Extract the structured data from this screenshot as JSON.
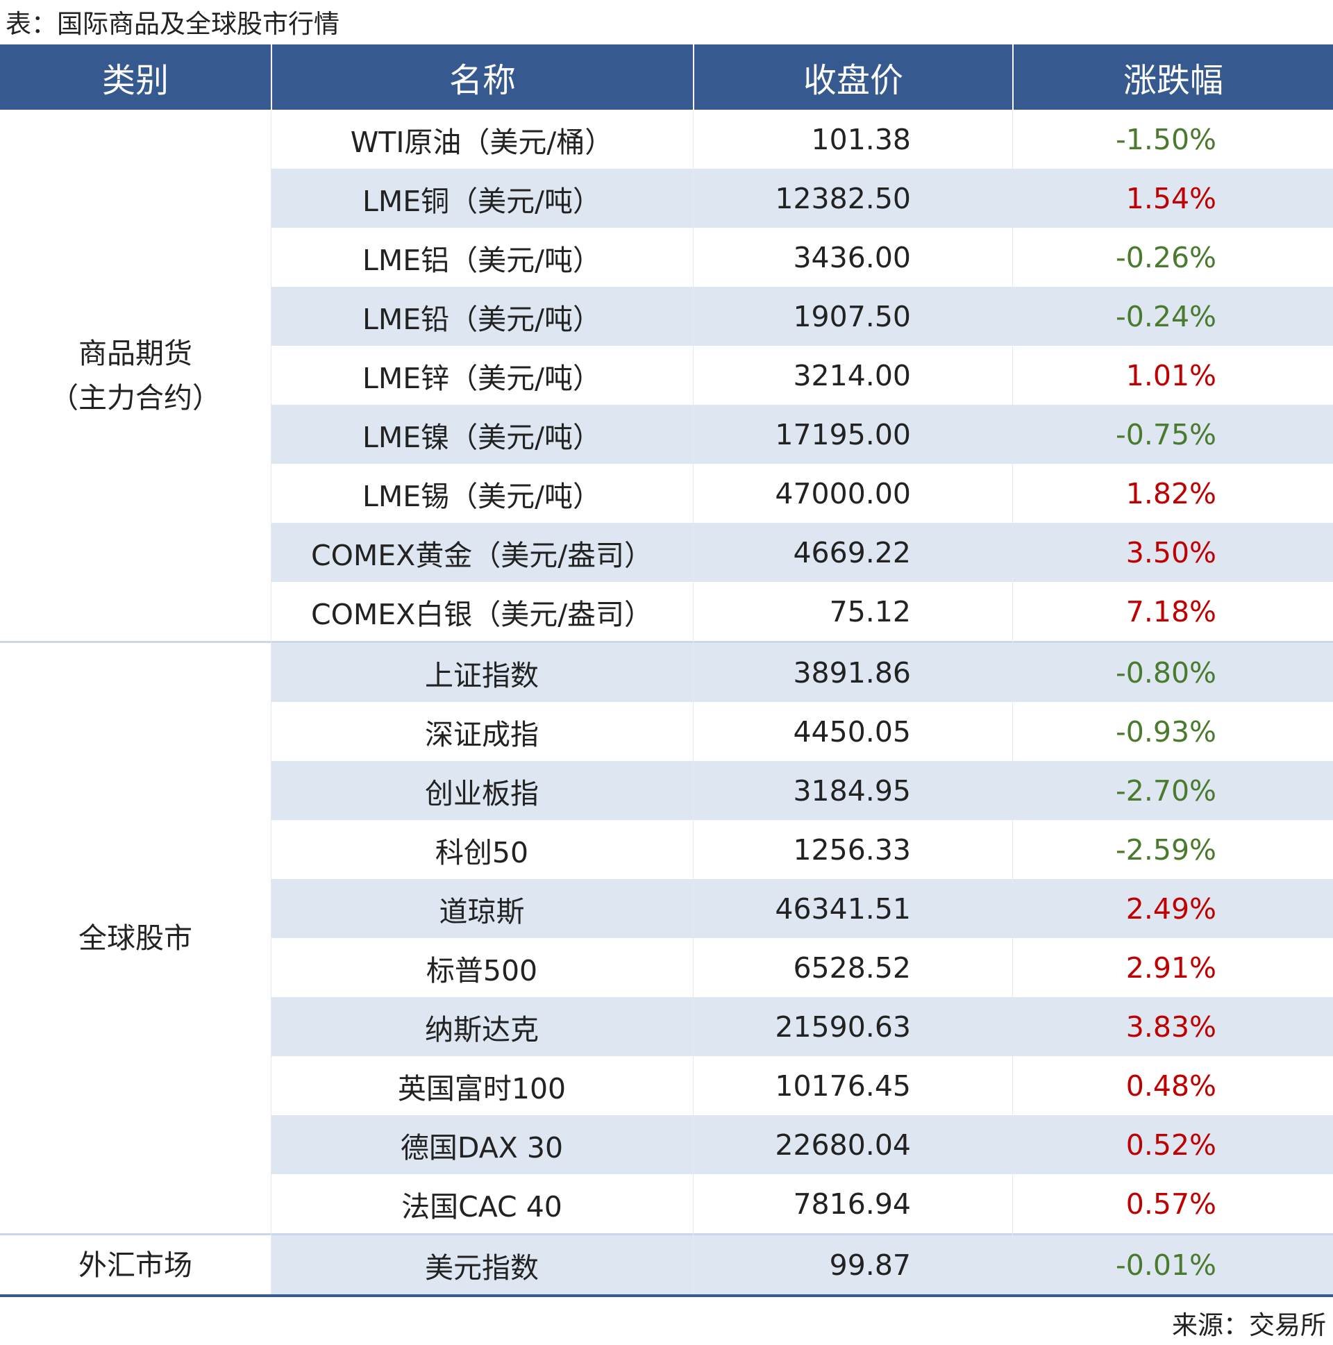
{
  "header": {
    "title": "表：国际商品及全球股市行情"
  },
  "table": {
    "columns": [
      "类别",
      "名称",
      "收盘价",
      "涨跌幅"
    ],
    "groups": [
      {
        "category": [
          "商品期货",
          "（主力合约）"
        ],
        "rows": [
          [
            "WTI原油（美元/桶）",
            "101.38",
            "-1.50%"
          ],
          [
            "LME铜（美元/吨）",
            "12382.50",
            "1.54%"
          ],
          [
            "LME铝（美元/吨）",
            "3436.00",
            "-0.26%"
          ],
          [
            "LME铅（美元/吨）",
            "1907.50",
            "-0.24%"
          ],
          [
            "LME锌（美元/吨）",
            "3214.00",
            "1.01%"
          ],
          [
            "LME镍（美元/吨）",
            "17195.00",
            "-0.75%"
          ],
          [
            "LME锡（美元/吨）",
            "47000.00",
            "1.82%"
          ],
          [
            "COMEX黄金（美元/盎司）",
            "4669.22",
            "3.50%"
          ],
          [
            "COMEX白银（美元/盎司）",
            "75.12",
            "7.18%"
          ]
        ]
      },
      {
        "category": [
          "全球股市"
        ],
        "rows": [
          [
            "上证指数",
            "3891.86",
            "-0.80%"
          ],
          [
            "深证成指",
            "4450.05",
            "-0.93%"
          ],
          [
            "创业板指",
            "3184.95",
            "-2.70%"
          ],
          [
            "科创50",
            "1256.33",
            "-2.59%"
          ],
          [
            "道琼斯",
            "46341.51",
            "2.49%"
          ],
          [
            "标普500",
            "6528.52",
            "2.91%"
          ],
          [
            "纳斯达克",
            "21590.63",
            "3.83%"
          ],
          [
            "英国富时100",
            "10176.45",
            "0.48%"
          ],
          [
            "德国DAX 30",
            "22680.04",
            "0.52%"
          ],
          [
            "法国CAC 40",
            "7816.94",
            "0.57%"
          ]
        ]
      },
      {
        "category": [
          "外汇市场"
        ],
        "rows": [
          [
            "美元指数",
            "99.87",
            "-0.01%"
          ]
        ]
      }
    ]
  },
  "source": "来源：交易所"
}
